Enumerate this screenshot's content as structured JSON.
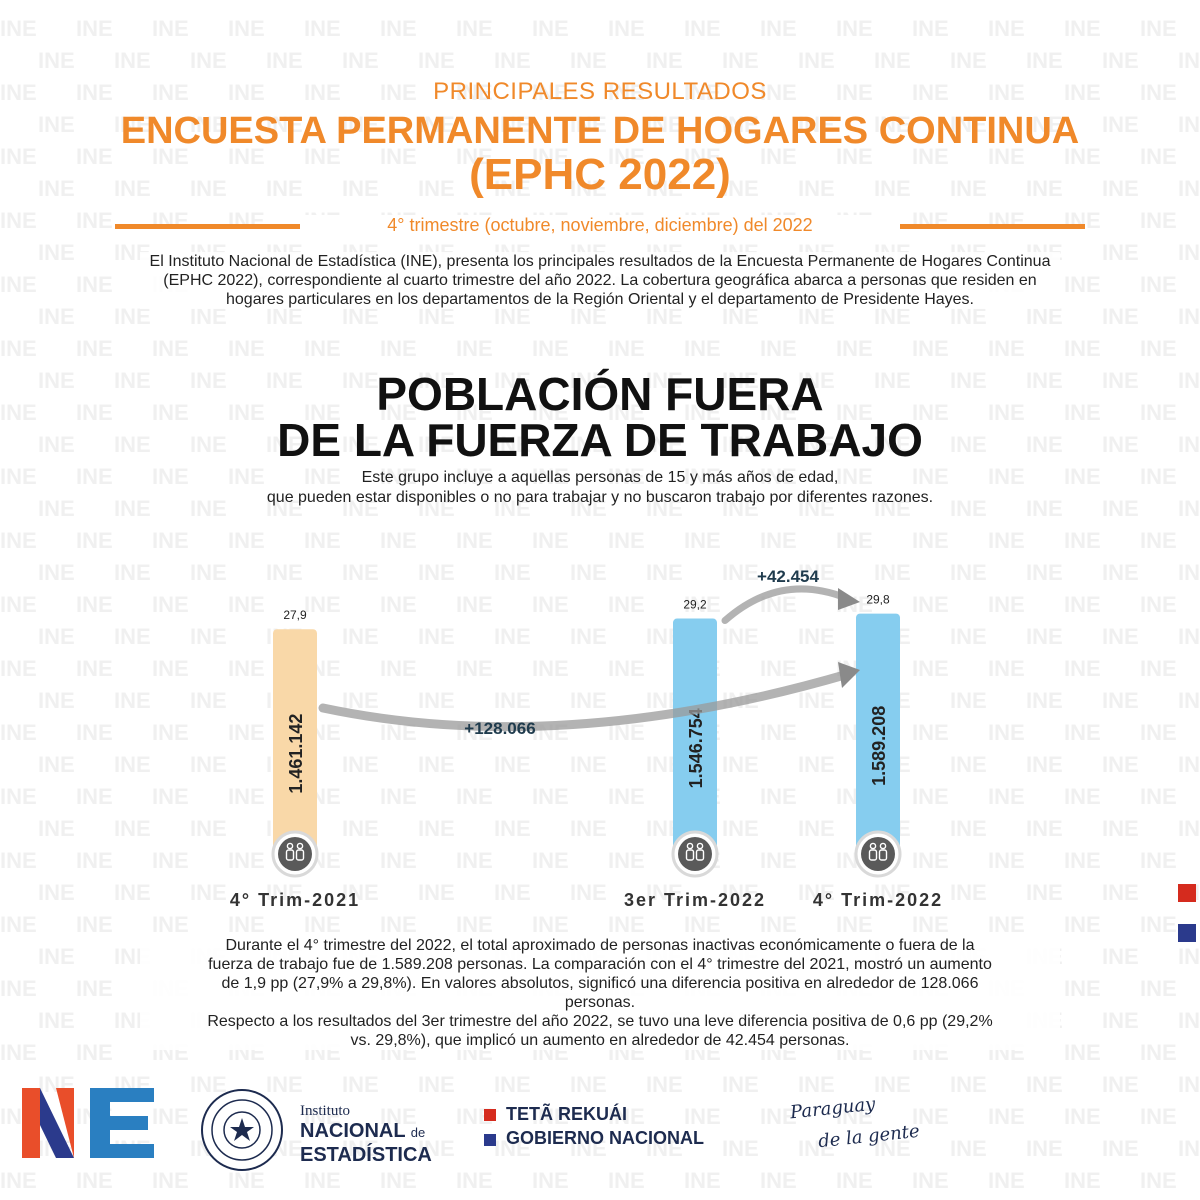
{
  "header": {
    "kicker": "PRINCIPALES RESULTADOS",
    "title_line1": "ENCUESTA PERMANENTE DE HOGARES CONTINUA",
    "title_line2": "(EPHC 2022)",
    "period": "4° trimestre  (octubre, noviembre, diciembre) del 2022"
  },
  "intro": "El Instituto Nacional de Estadística (INE), presenta los principales resultados de la Encuesta Permanente de Hogares Continua (EPHC 2022), correspondiente al cuarto trimestre del año 2022.  La cobertura geográfica abarca a personas que residen en hogares particulares en los departamentos de la Región Oriental y el departamento de Presidente Hayes.",
  "section": {
    "title_line1": "POBLACIÓN FUERA",
    "title_line2": "DE LA FUERZA DE TRABAJO",
    "desc_line1": "Este grupo incluye a aquellas personas de 15 y más años de edad,",
    "desc_line2": "que pueden estar disponibles o no para trabajar y no buscaron trabajo por diferentes razones."
  },
  "watermark_text": "INE",
  "chart_data": {
    "type": "bar",
    "categories": [
      "4° Trim-2021",
      "3er Trim-2022",
      "4° Trim-2022"
    ],
    "values": [
      1461142,
      1546754,
      1589208
    ],
    "value_labels": [
      "1.461.142",
      "1.546.754",
      "1.589.208"
    ],
    "percent_labels": [
      "27,9",
      "29,2",
      "29,8"
    ],
    "percent_values": [
      27.9,
      29.2,
      29.8
    ],
    "ylim": [
      0,
      30
    ],
    "bar_colors": [
      "#f9d8a8",
      "#86cdef",
      "#86cdef"
    ],
    "annotations": {
      "diff_quarter": "+42.454",
      "diff_year": "+128.066"
    },
    "icon": "people-icon"
  },
  "summary_lines": [
    "Durante el 4° trimestre del 2022, el total aproximado de personas inactivas económicamente o fuera de la",
    "fuerza de trabajo fue de 1.589.208 personas. La comparación con el 4° trimestre del 2021, mostró un aumento",
    "de 1,9 pp (27,9% a 29,8%). En valores absolutos, significó una diferencia positiva en alrededor de 128.066",
    "personas.",
    "Respecto a los resultados del 3er trimestre del año 2022, se tuvo una leve diferencia positiva de 0,6 pp (29,2%",
    "vs. 29,8%), que implicó un aumento en alrededor de 42.454 personas."
  ],
  "footer": {
    "ine_logo": "INE",
    "seal_text": "REPÚBLICA DEL PARAGUAY",
    "institute_line1": "Instituto",
    "institute_line2": "NACIONAL",
    "institute_de": "de",
    "institute_line3": "ESTADÍSTICA",
    "gov_line1": "TETÃ REKUÁI",
    "gov_line2": "GOBIERNO NACIONAL",
    "slogan_line1": "Paraguay",
    "slogan_line2": "de la gente"
  },
  "colors": {
    "accent": "#f0892a",
    "bar_prev_year": "#f9d8a8",
    "bar_current": "#86cdef",
    "flag_red": "#d52b1e",
    "flag_blue": "#2b3a8c"
  }
}
